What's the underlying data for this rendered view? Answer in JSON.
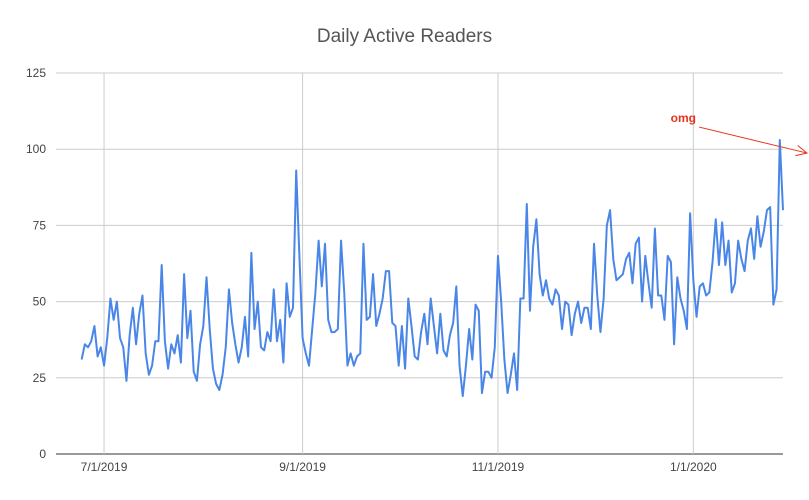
{
  "chart_data": {
    "type": "line",
    "title": "Daily Active Readers",
    "xlabel": "",
    "ylabel": "",
    "ylim": [
      0,
      125
    ],
    "yticks": [
      "0",
      "25",
      "50",
      "75",
      "100",
      "125"
    ],
    "xticks": [
      "7/1/2019",
      "9/1/2019",
      "11/1/2019",
      "1/1/2020"
    ],
    "grid": true,
    "legend": "none",
    "series_color": "#4a86e8",
    "annotation": {
      "text": "omg",
      "color": "#e8331c",
      "x": "2020-02-08",
      "y": 103
    },
    "series": [
      {
        "start_date": "2019-06-24",
        "values": [
          31,
          36,
          35,
          37,
          42,
          32,
          35,
          29,
          38,
          51,
          44,
          50,
          38,
          35,
          24,
          39,
          48,
          36,
          46,
          52,
          33,
          26,
          29,
          37,
          37,
          62,
          37,
          28,
          36,
          33,
          39,
          30,
          59,
          38,
          47,
          27,
          24,
          36,
          42,
          58,
          41,
          28,
          23,
          21,
          26,
          35,
          54,
          43,
          36,
          30,
          35,
          45,
          32,
          66,
          41,
          50,
          35,
          34,
          40,
          37,
          54,
          37,
          44,
          30,
          56,
          45,
          48,
          93,
          65,
          38,
          33,
          29,
          41,
          53,
          70,
          55,
          69,
          44,
          40,
          40,
          41,
          70,
          53,
          29,
          33,
          29,
          32,
          33,
          69,
          44,
          45,
          59,
          42,
          46,
          51,
          60,
          60,
          43,
          42,
          29,
          42,
          28,
          51,
          42,
          32,
          31,
          40,
          46,
          36,
          51,
          42,
          33,
          46,
          34,
          32,
          39,
          43,
          55,
          29,
          19,
          29,
          41,
          31,
          49,
          47,
          20,
          27,
          27,
          25,
          35,
          65,
          50,
          31,
          20,
          26,
          33,
          21,
          51,
          51,
          82,
          47,
          68,
          77,
          59,
          52,
          57,
          51,
          49,
          54,
          52,
          41,
          50,
          49,
          39,
          46,
          50,
          43,
          48,
          48,
          41,
          69,
          52,
          40,
          51,
          75,
          80,
          64,
          57,
          58,
          59,
          64,
          66,
          56,
          69,
          71,
          50,
          65,
          56,
          48,
          74,
          52,
          52,
          44,
          65,
          63,
          36,
          58,
          51,
          47,
          41,
          79,
          57,
          45,
          55,
          56,
          52,
          53,
          63,
          77,
          62,
          76,
          62,
          70,
          53,
          56,
          70,
          64,
          60,
          70,
          74,
          64,
          78,
          68,
          73,
          80,
          81,
          49,
          54,
          103,
          80
        ]
      }
    ]
  }
}
